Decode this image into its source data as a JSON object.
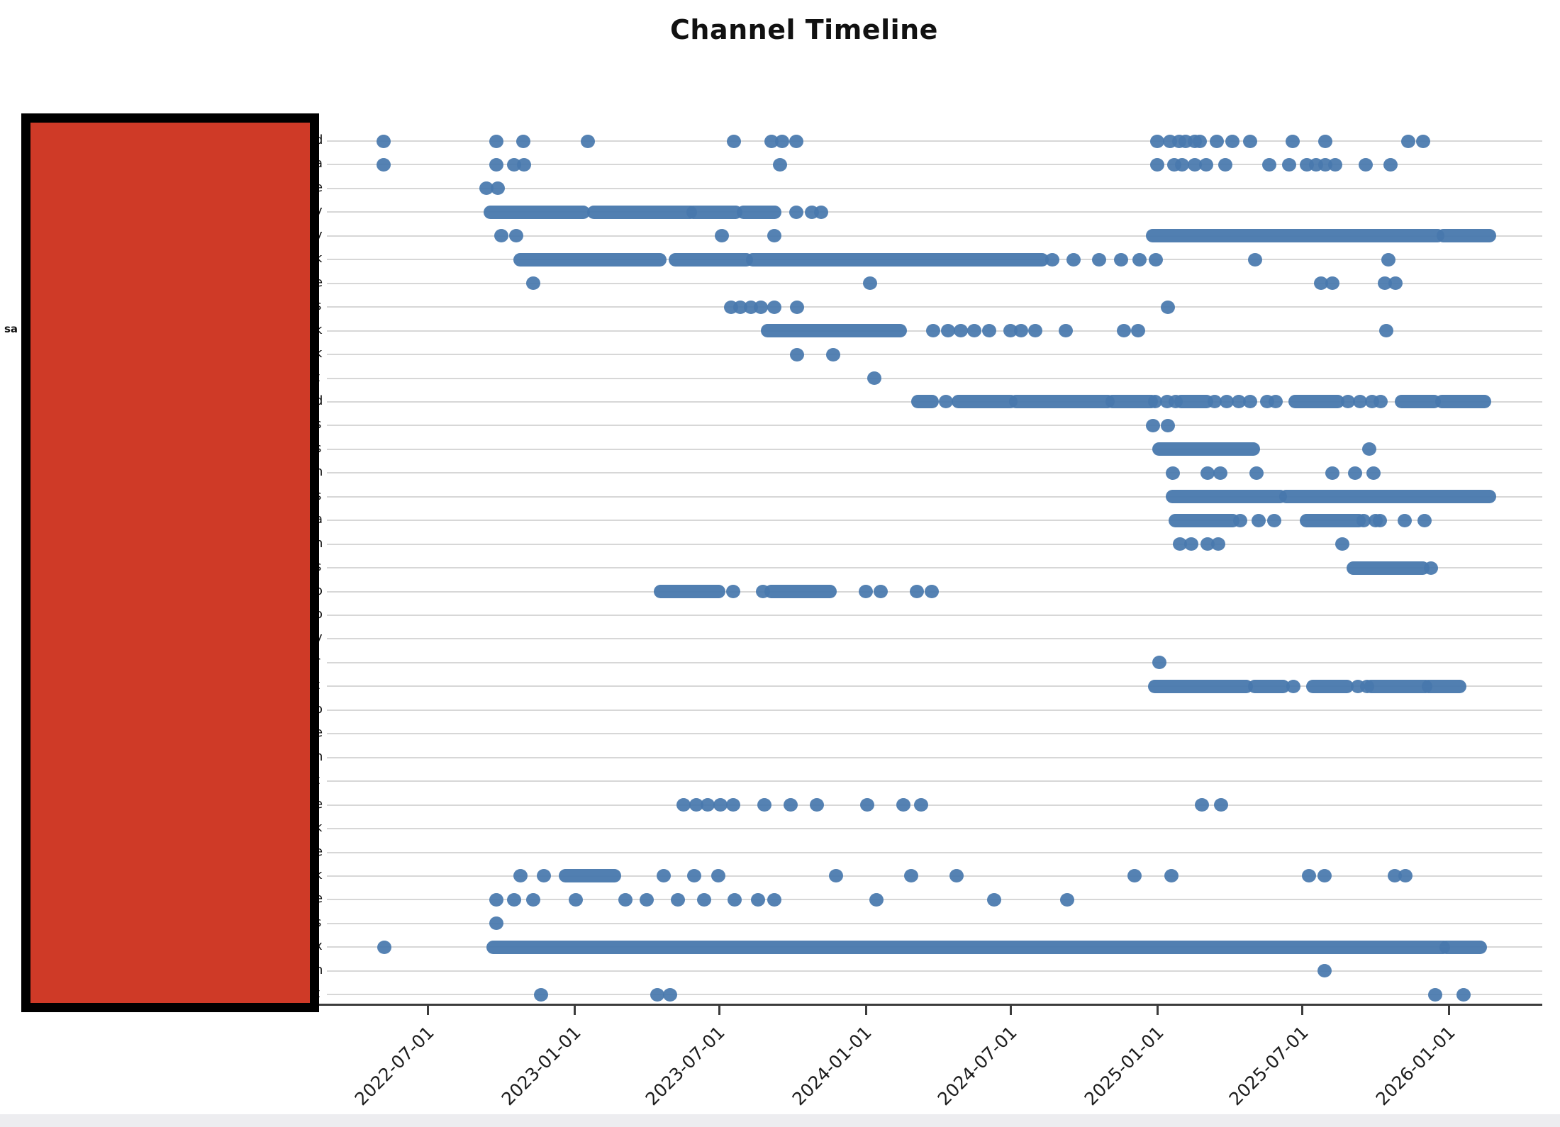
{
  "title": "Channel Timeline",
  "colors": {
    "dot": "#4878ad",
    "redaction_fill": "#cf3a27",
    "redaction_border": "#000000",
    "gridline": "#d7d7d7",
    "axis": "#3c3c3c",
    "footer_band": "#ededf0"
  },
  "x_axis": {
    "ticks": [
      "2022-07-01",
      "2023-01-01",
      "2023-07-01",
      "2024-01-01",
      "2024-07-01",
      "2025-01-01",
      "2025-07-01",
      "2026-01-01"
    ]
  },
  "y_axis": {
    "note_visible_fragments": "channel names hidden by red redaction box; only last letters visible",
    "left_overflow_fragment": {
      "row_index": 8,
      "text": "sa"
    }
  },
  "chart_data": {
    "type": "scatter",
    "title": "Channel Timeline",
    "xlabel": "",
    "ylabel": "",
    "x_range": [
      "2022-02-25",
      "2026-04-28"
    ],
    "grid": true,
    "legend": false,
    "rows": [
      {
        "label_fragment": "d",
        "points": [
          "2022-05-07",
          "2022-09-25",
          "2022-10-29",
          "2023-01-18",
          "2023-07-20",
          "2023-09-05",
          "2023-09-18",
          "2023-10-06",
          "2025-01-01",
          "2025-01-17",
          "2025-01-28",
          "2025-02-05",
          "2025-02-17",
          "2025-02-23",
          "2025-03-16",
          "2025-04-05",
          "2025-04-27",
          "2025-06-19",
          "2025-07-30",
          "2025-11-11",
          "2025-11-30"
        ],
        "segments": []
      },
      {
        "label_fragment": "a",
        "points": [
          "2022-05-07",
          "2022-09-25",
          "2022-10-17",
          "2022-10-30",
          "2023-09-16",
          "2025-01-01",
          "2025-01-22",
          "2025-02-01",
          "2025-02-17",
          "2025-03-03",
          "2025-03-27",
          "2025-05-21",
          "2025-06-15",
          "2025-07-07",
          "2025-07-19",
          "2025-07-30",
          "2025-08-12",
          "2025-09-19",
          "2025-10-20"
        ],
        "segments": []
      },
      {
        "label_fragment": "e",
        "points": [
          "2022-09-13",
          "2022-09-27"
        ],
        "segments": []
      },
      {
        "label_fragment": "y",
        "points": [
          "2023-10-06",
          "2023-10-26",
          "2023-11-06"
        ],
        "segments": [
          [
            "2022-09-18",
            "2023-01-12"
          ],
          [
            "2023-01-26",
            "2023-05-26"
          ],
          [
            "2023-05-30",
            "2023-07-22"
          ],
          [
            "2023-08-01",
            "2023-09-09"
          ]
        ]
      },
      {
        "label_fragment": "y",
        "points": [
          "2022-10-01",
          "2022-10-20",
          "2023-07-05",
          "2023-09-09"
        ],
        "segments": [
          [
            "2024-12-26",
            "2025-12-18"
          ],
          [
            "2025-12-26",
            "2026-02-21"
          ]
        ]
      },
      {
        "label_fragment": "k",
        "points": [
          "2024-08-22",
          "2024-09-18",
          "2024-10-20",
          "2024-11-16",
          "2024-12-09",
          "2024-12-30",
          "2025-05-03",
          "2025-10-17"
        ],
        "segments": [
          [
            "2022-10-25",
            "2023-04-18"
          ],
          [
            "2023-05-08",
            "2023-08-04"
          ],
          [
            "2023-08-13",
            "2024-08-09"
          ]
        ]
      },
      {
        "label_fragment": "e",
        "points": [
          "2022-11-10",
          "2024-01-07",
          "2025-07-25",
          "2025-08-08",
          "2025-10-13",
          "2025-10-26"
        ],
        "segments": []
      },
      {
        "label_fragment": "s",
        "points": [
          "2023-07-16",
          "2023-07-28",
          "2023-08-10",
          "2023-08-23",
          "2023-09-09",
          "2023-10-07",
          "2025-01-14"
        ],
        "segments": []
      },
      {
        "label_fragment": "k",
        "points": [
          "2024-03-26",
          "2024-04-13",
          "2024-04-29",
          "2024-05-16",
          "2024-06-04",
          "2024-07-01",
          "2024-07-14",
          "2024-08-01",
          "2024-09-08",
          "2024-11-20",
          "2024-12-08",
          "2025-10-15"
        ],
        "segments": [
          [
            "2023-09-01",
            "2024-02-13"
          ]
        ]
      },
      {
        "label_fragment": "k",
        "points": [
          "2023-10-07",
          "2023-11-21"
        ],
        "segments": []
      },
      {
        "label_fragment": "t",
        "points": [
          "2024-01-12"
        ],
        "segments": []
      },
      {
        "label_fragment": "d",
        "points": [
          "2024-04-11",
          "2024-12-29",
          "2025-01-13",
          "2025-01-24",
          "2025-03-14",
          "2025-03-29",
          "2025-04-13",
          "2025-04-27",
          "2025-05-18",
          "2025-05-29",
          "2025-08-28",
          "2025-09-12",
          "2025-09-27",
          "2025-10-08"
        ],
        "segments": [
          [
            "2024-03-07",
            "2024-03-24"
          ],
          [
            "2024-04-27",
            "2024-07-01"
          ],
          [
            "2024-07-08",
            "2024-10-30"
          ],
          [
            "2024-11-06",
            "2024-12-24"
          ],
          [
            "2025-01-31",
            "2025-03-03"
          ],
          [
            "2025-06-23",
            "2025-08-14"
          ],
          [
            "2025-11-03",
            "2025-12-13"
          ],
          [
            "2025-12-24",
            "2026-02-14"
          ]
        ]
      },
      {
        "label_fragment": "s",
        "points": [
          "2024-12-26",
          "2025-01-14"
        ],
        "segments": []
      },
      {
        "label_fragment": "s",
        "points": [
          "2025-09-23"
        ],
        "segments": [
          [
            "2025-01-03",
            "2025-05-01"
          ]
        ]
      },
      {
        "label_fragment": "n",
        "points": [
          "2025-01-20",
          "2025-03-05",
          "2025-03-21",
          "2025-05-05",
          "2025-08-08",
          "2025-09-06",
          "2025-09-29"
        ],
        "segments": []
      },
      {
        "label_fragment": "s",
        "points": [],
        "segments": [
          [
            "2025-01-20",
            "2025-06-03"
          ],
          [
            "2025-06-11",
            "2026-02-21"
          ]
        ]
      },
      {
        "label_fragment": "a",
        "points": [
          "2025-04-15",
          "2025-05-08",
          "2025-05-27",
          "2025-09-16",
          "2025-10-01",
          "2025-10-07",
          "2025-11-07",
          "2025-12-02"
        ],
        "segments": [
          [
            "2025-01-24",
            "2025-04-05"
          ],
          [
            "2025-07-07",
            "2025-09-10"
          ]
        ]
      },
      {
        "label_fragment": "n",
        "points": [
          "2025-01-29",
          "2025-02-12",
          "2025-03-05",
          "2025-03-18",
          "2025-08-21"
        ],
        "segments": []
      },
      {
        "label_fragment": "s",
        "points": [
          "2025-12-10"
        ],
        "segments": [
          [
            "2025-09-04",
            "2025-11-29"
          ]
        ]
      },
      {
        "label_fragment": "o",
        "points": [
          "2023-07-19",
          "2023-08-25",
          "2024-01-01",
          "2024-01-20",
          "2024-03-05",
          "2024-03-24"
        ],
        "segments": [
          [
            "2023-04-19",
            "2023-06-30"
          ],
          [
            "2023-09-05",
            "2023-11-17"
          ]
        ]
      },
      {
        "label_fragment": "o",
        "points": [],
        "segments": []
      },
      {
        "label_fragment": "y",
        "points": [],
        "segments": []
      },
      {
        "label_fragment": "r",
        "points": [
          "2025-01-03"
        ],
        "segments": []
      },
      {
        "label_fragment": "t",
        "points": [
          "2025-06-20",
          "2025-09-09",
          "2025-09-21"
        ],
        "segments": [
          [
            "2024-12-29",
            "2025-04-22"
          ],
          [
            "2025-05-03",
            "2025-06-07"
          ],
          [
            "2025-07-15",
            "2025-08-26"
          ],
          [
            "2025-09-26",
            "2025-12-03"
          ],
          [
            "2025-12-07",
            "2026-01-14"
          ]
        ]
      },
      {
        "label_fragment": "o",
        "points": [],
        "segments": []
      },
      {
        "label_fragment": "e",
        "points": [],
        "segments": []
      },
      {
        "label_fragment": "n",
        "points": [],
        "segments": []
      },
      {
        "label_fragment": "t",
        "points": [],
        "segments": []
      },
      {
        "label_fragment": "e",
        "points": [
          "2023-05-18",
          "2023-06-03",
          "2023-06-17",
          "2023-07-03",
          "2023-07-19",
          "2023-08-27",
          "2023-09-29",
          "2023-11-01",
          "2024-01-03",
          "2024-02-17",
          "2024-03-11",
          "2025-02-26",
          "2025-03-22"
        ],
        "segments": []
      },
      {
        "label_fragment": "k",
        "points": [],
        "segments": []
      },
      {
        "label_fragment": "e",
        "points": [],
        "segments": []
      },
      {
        "label_fragment": "k",
        "points": [
          "2022-10-25",
          "2022-11-24",
          "2023-04-23",
          "2023-05-31",
          "2023-06-30",
          "2023-11-25",
          "2024-02-27",
          "2024-04-24",
          "2024-12-03",
          "2025-01-18",
          "2025-07-10",
          "2025-07-29",
          "2025-10-25",
          "2025-11-08"
        ],
        "segments": [
          [
            "2022-12-21",
            "2023-02-20"
          ]
        ]
      },
      {
        "label_fragment": "e",
        "points": [
          "2022-09-25",
          "2022-10-17",
          "2022-11-10",
          "2023-01-03",
          "2023-03-06",
          "2023-04-02",
          "2023-05-11",
          "2023-06-13",
          "2023-07-21",
          "2023-08-19",
          "2023-09-09",
          "2024-01-15",
          "2024-06-10",
          "2024-09-10"
        ],
        "segments": []
      },
      {
        "label_fragment": "s",
        "points": [
          "2022-09-25"
        ],
        "segments": []
      },
      {
        "label_fragment": "x",
        "points": [
          "2022-05-08"
        ],
        "segments": [
          [
            "2022-09-22",
            "2025-12-25"
          ],
          [
            "2025-12-29",
            "2026-02-09"
          ]
        ]
      },
      {
        "label_fragment": "n",
        "points": [
          "2025-07-29"
        ],
        "segments": []
      },
      {
        "label_fragment": "t",
        "points": [
          "2022-11-20",
          "2023-04-15",
          "2023-05-01",
          "2025-12-15",
          "2026-01-20"
        ],
        "segments": []
      }
    ]
  }
}
